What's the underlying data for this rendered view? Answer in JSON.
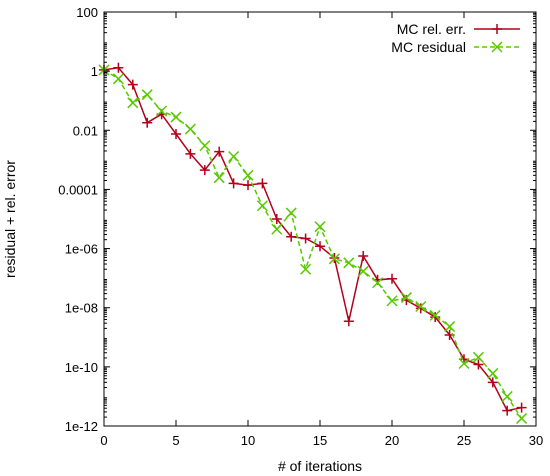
{
  "chart_data": {
    "type": "line",
    "title": "",
    "xlabel": "# of iterations",
    "ylabel": "residual + rel. error",
    "xlim": [
      0,
      30
    ],
    "ylim": [
      1e-12,
      100
    ],
    "ylog": true,
    "grid": false,
    "legend_position": "top-right",
    "xticks": [
      0,
      5,
      10,
      15,
      20,
      25,
      30
    ],
    "xtick_labels": [
      "0",
      "5",
      "10",
      "15",
      "20",
      "25",
      "30"
    ],
    "yticks": [
      1e-12,
      1e-10,
      1e-08,
      1e-06,
      0.0001,
      0.01,
      1,
      100
    ],
    "ytick_labels": [
      "1e-12",
      "1e-10",
      "1e-08",
      "1e-06",
      "0.0001",
      "0.01",
      "1",
      "100"
    ],
    "series": [
      {
        "name": "MC rel. err.",
        "color": "#b3001b",
        "marker": "plus",
        "line": "solid",
        "x": [
          0,
          1,
          2,
          3,
          4,
          5,
          6,
          7,
          8,
          9,
          10,
          11,
          12,
          13,
          14,
          15,
          16,
          17,
          18,
          19,
          20,
          21,
          22,
          23,
          24,
          25,
          26,
          27,
          28,
          29
        ],
        "y": [
          1.1,
          1.3,
          0.35,
          0.018,
          0.035,
          0.0075,
          0.0016,
          0.00045,
          0.0019,
          0.00016,
          0.00014,
          0.00016,
          1e-05,
          2.5e-06,
          2.2e-06,
          1.2e-06,
          4.8e-07,
          3.5e-09,
          5.6e-07,
          8.8e-08,
          9.5e-08,
          1.8e-08,
          9.5e-09,
          4.8e-09,
          1.2e-09,
          1.8e-10,
          1.2e-10,
          3e-11,
          3.3e-12,
          4.2e-12
        ]
      },
      {
        "name": "MC residual",
        "color": "#58c800",
        "marker": "x",
        "line": "dashed",
        "x": [
          0,
          1,
          2,
          3,
          4,
          5,
          6,
          7,
          8,
          9,
          10,
          11,
          12,
          13,
          14,
          15,
          16,
          17,
          18,
          19,
          20,
          21,
          22,
          23,
          24,
          25,
          26,
          27,
          28,
          29
        ],
        "y": [
          1.1,
          0.55,
          0.085,
          0.16,
          0.045,
          0.028,
          0.011,
          0.003,
          0.00025,
          0.0013,
          0.0003,
          2.8e-05,
          4.5e-06,
          1.6e-05,
          2e-07,
          5.5e-06,
          4.5e-07,
          3.3e-07,
          1.7e-07,
          7e-08,
          1.7e-08,
          2.2e-08,
          1.1e-08,
          5.5e-09,
          2.3e-09,
          1.3e-10,
          2.1e-10,
          6e-11,
          1e-11,
          1.8e-12
        ]
      }
    ]
  }
}
